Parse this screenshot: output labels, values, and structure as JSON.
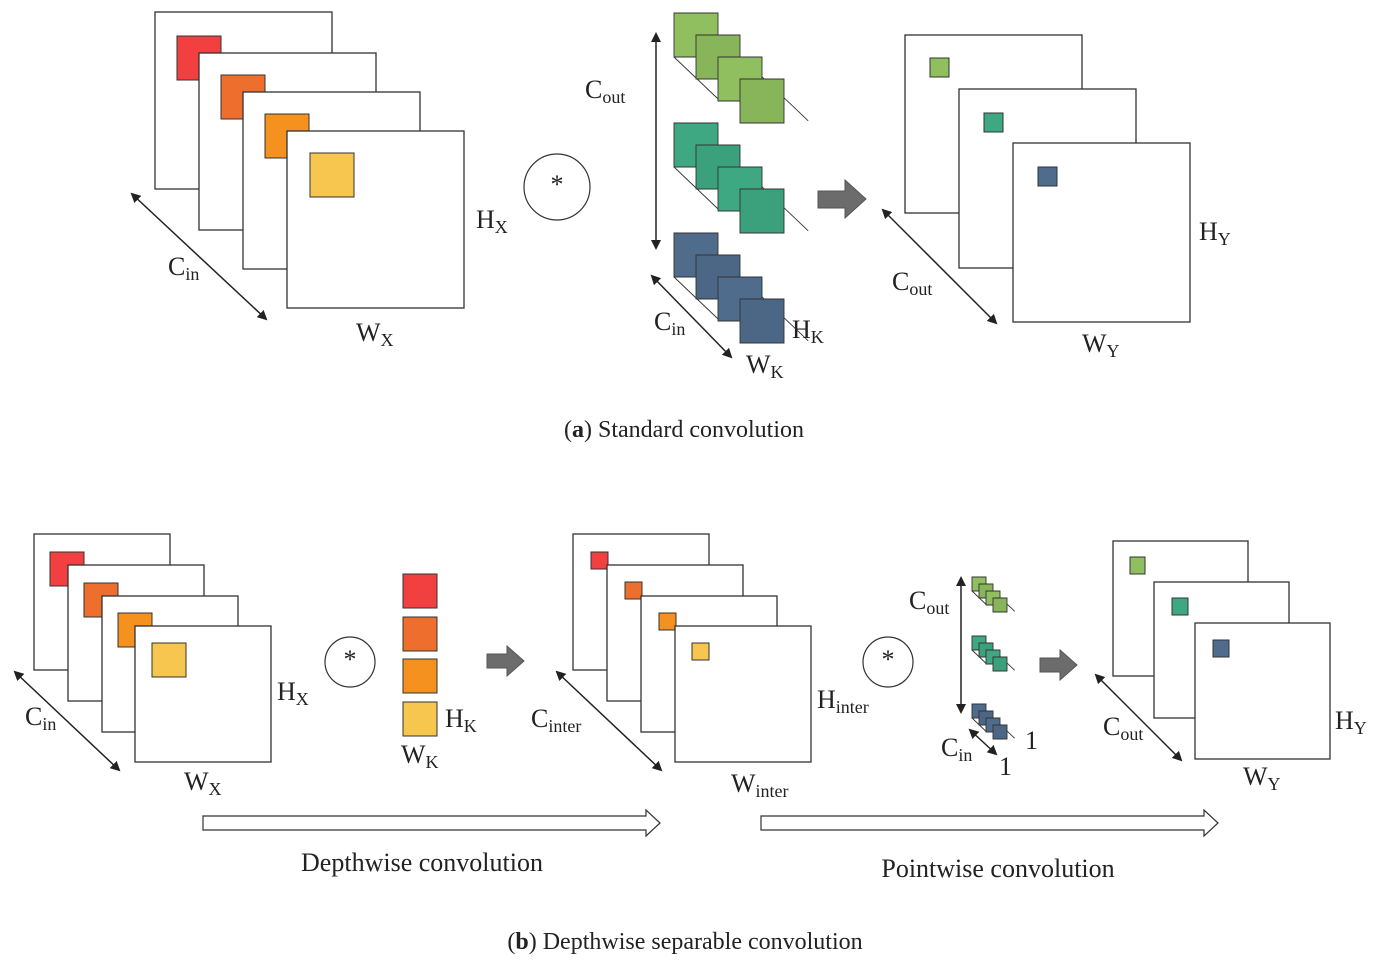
{
  "colors": {
    "red": "#f23f3f",
    "orange_dark": "#ee6f2d",
    "orange": "#f5911e",
    "yellow": "#f7c64f",
    "green": "#8fbf5f",
    "teal": "#3ea883",
    "blue": "#4f6c8c",
    "arrow_gray": "#6c6c6c"
  },
  "operator": "*",
  "panel_a": {
    "caption_letter": "a",
    "caption_text": "Standard convolution",
    "input": {
      "H": "H",
      "H_sub": "X",
      "W": "W",
      "W_sub": "X",
      "C": "C",
      "C_sub": "in"
    },
    "kernel": {
      "Cout": "C",
      "Cout_sub": "out",
      "Cin": "C",
      "Cin_sub": "in",
      "H": "H",
      "H_sub": "K",
      "W": "W",
      "W_sub": "K"
    },
    "output": {
      "H": "H",
      "H_sub": "Y",
      "W": "W",
      "W_sub": "Y",
      "C": "C",
      "C_sub": "out"
    }
  },
  "panel_b": {
    "caption_letter": "b",
    "caption_text": "Depthwise separable convolution",
    "input": {
      "H": "H",
      "H_sub": "X",
      "W": "W",
      "W_sub": "X",
      "C": "C",
      "C_sub": "in"
    },
    "dw_kernel": {
      "H": "H",
      "H_sub": "K",
      "W": "W",
      "W_sub": "K"
    },
    "inter": {
      "H": "H",
      "H_sub": "inter",
      "W": "W",
      "W_sub": "inter",
      "C": "C",
      "C_sub": "inter"
    },
    "pw_kernel": {
      "Cout": "C",
      "Cout_sub": "out",
      "Cin": "C",
      "Cin_sub": "in",
      "one_a": "1",
      "one_b": "1"
    },
    "output": {
      "H": "H",
      "H_sub": "Y",
      "W": "W",
      "W_sub": "Y",
      "C": "C",
      "C_sub": "out"
    },
    "depthwise_label": "Depthwise convolution",
    "pointwise_label": "Pointwise convolution"
  }
}
